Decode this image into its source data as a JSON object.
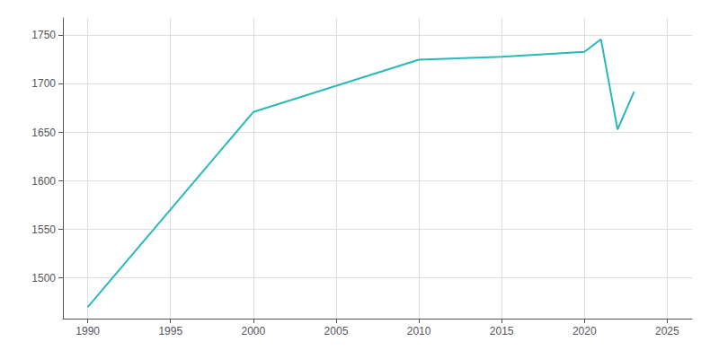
{
  "chart_data": {
    "type": "line",
    "x": [
      1990,
      2000,
      2010,
      2015,
      2020,
      2021,
      2022,
      2023
    ],
    "values": [
      1470,
      1671,
      1725,
      1728,
      1733,
      1746,
      1653,
      1692
    ],
    "color": "#2ab8b8",
    "xlim": [
      1988.5,
      2026.5
    ],
    "ylim": [
      1458,
      1768
    ],
    "xticks": [
      1990,
      1995,
      2000,
      2005,
      2010,
      2015,
      2020,
      2025
    ],
    "yticks": [
      1500,
      1550,
      1600,
      1650,
      1700,
      1750
    ],
    "grid": true
  }
}
